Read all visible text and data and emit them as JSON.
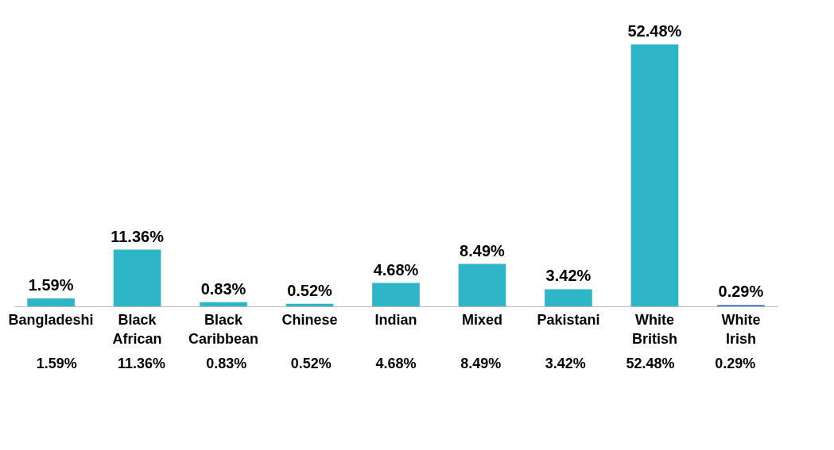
{
  "chart_data": {
    "type": "bar",
    "categories": [
      "Bangladeshi",
      "Black African",
      "Black Caribbean",
      "Chinese",
      "Indian",
      "Mixed",
      "Pakistani",
      "White British",
      "White Irish"
    ],
    "values": [
      1.59,
      11.36,
      0.83,
      0.52,
      4.68,
      8.49,
      3.42,
      52.48,
      0.29
    ],
    "value_labels": [
      "1.59%",
      "11.36%",
      "0.83%",
      "0.52%",
      "4.68%",
      "8.49%",
      "3.42%",
      "52.48%",
      "0.29%"
    ],
    "colors": [
      "#2eb5c8",
      "#2eb5c8",
      "#2eb5c8",
      "#2eb5c8",
      "#2eb5c8",
      "#2eb5c8",
      "#2eb5c8",
      "#2eb5c8",
      "#4472c4"
    ],
    "grid": false
  }
}
